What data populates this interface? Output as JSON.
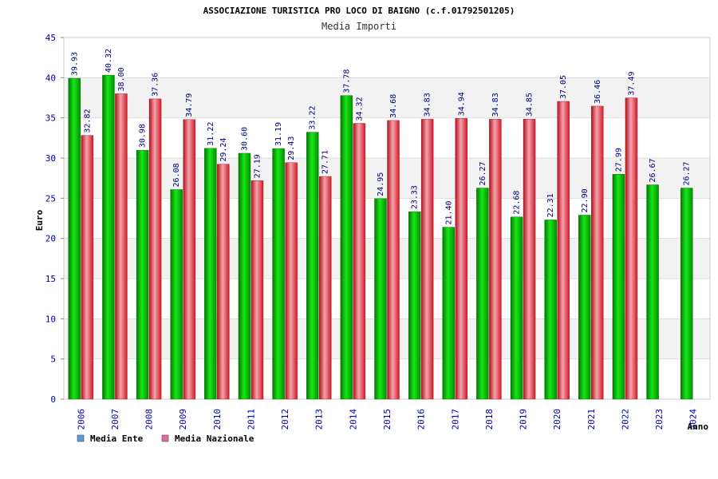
{
  "chart_data": {
    "type": "bar",
    "title": "ASSOCIAZIONE TURISTICA PRO LOCO DI BAIGNO (c.f.01792501205)",
    "subtitle": "Media Importi",
    "xlabel": "Anno",
    "ylabel": "Euro",
    "ylim": [
      0,
      45
    ],
    "ytick_step": 5,
    "yticks": [
      "0",
      "5",
      "10",
      "15",
      "20",
      "25",
      "30",
      "35",
      "40",
      "45"
    ],
    "grid": true,
    "legend_position": "bottom-left",
    "categories": [
      "2006",
      "2007",
      "2008",
      "2009",
      "2010",
      "2011",
      "2012",
      "2013",
      "2014",
      "2015",
      "2016",
      "2017",
      "2018",
      "2019",
      "2020",
      "2021",
      "2022",
      "2023",
      "2024"
    ],
    "series": [
      {
        "name": "Media Ente",
        "color": "#00b400",
        "legend_color": "#5b9bd5",
        "values": [
          39.93,
          40.32,
          30.98,
          26.08,
          31.22,
          30.6,
          31.19,
          33.22,
          37.78,
          24.95,
          23.33,
          21.4,
          26.27,
          22.68,
          22.31,
          22.9,
          27.99,
          26.67,
          26.27
        ],
        "labels": [
          "39.93",
          "40.32",
          "30.98",
          "26.08",
          "31.22",
          "30.60",
          "31.19",
          "33.22",
          "37.78",
          "24.95",
          "23.33",
          "21.40",
          "26.27",
          "22.68",
          "22.31",
          "22.90",
          "27.99",
          "26.67",
          "26.27"
        ]
      },
      {
        "name": "Media Nazionale",
        "color": "#e8202a",
        "legend_color": "#e06ba3",
        "values": [
          32.82,
          38.0,
          37.36,
          34.79,
          29.24,
          27.19,
          29.43,
          27.71,
          34.32,
          34.68,
          34.83,
          34.94,
          34.83,
          34.85,
          37.05,
          36.46,
          37.49,
          null,
          null
        ],
        "labels": [
          "32.82",
          "38.00",
          "37.36",
          "34.79",
          "29.24",
          "27.19",
          "29.43",
          "27.71",
          "34.32",
          "34.68",
          "34.83",
          "34.94",
          "34.83",
          "34.85",
          "37.05",
          "36.46",
          "37.49",
          "",
          ""
        ]
      }
    ]
  },
  "colors": {
    "axis_text": "#0000aa",
    "value_label": "#000080",
    "band": "#f2f2f2",
    "grid": "#dddddd",
    "frame": "#cccccc"
  }
}
